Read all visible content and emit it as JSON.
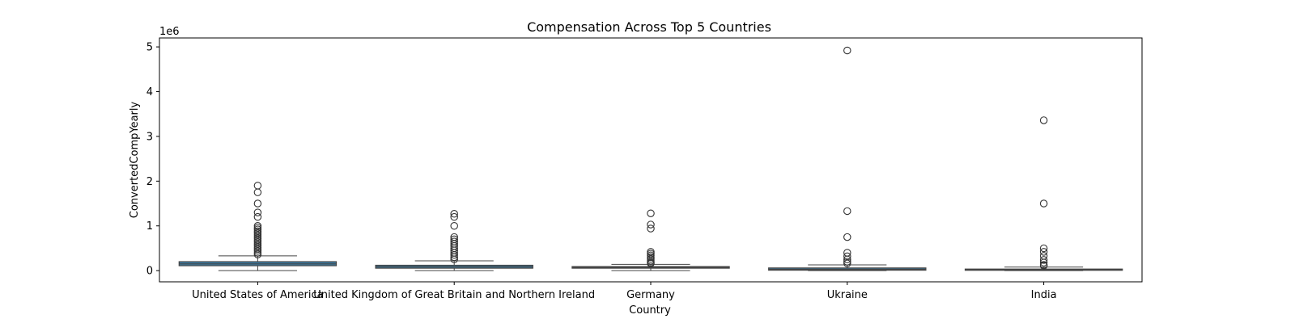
{
  "chart_data": {
    "type": "box",
    "title": "Compensation Across Top 5 Countries",
    "xlabel": "Country",
    "ylabel": "ConvertedCompYearly",
    "y_offset_label": "1e6",
    "y_scale_multiplier": 1000000,
    "ylim": [
      -250000,
      5200000
    ],
    "y_ticks": [
      0,
      1000000,
      2000000,
      3000000,
      4000000,
      5000000
    ],
    "y_tick_labels": [
      "0",
      "1",
      "2",
      "3",
      "4",
      "5"
    ],
    "categories": [
      "United States of America",
      "United Kingdom of Great Britain and Northern Ireland",
      "Germany",
      "Ukraine",
      "India"
    ],
    "box_color": "#3a7ca5",
    "boxes": [
      {
        "whisker_low": 0,
        "q1": 110000,
        "median": 150000,
        "q3": 200000,
        "whisker_high": 330000,
        "outliers": [
          1900000,
          1750000,
          1500000,
          1300000,
          1200000,
          1000000,
          960000,
          920000,
          880000,
          840000,
          800000,
          760000,
          720000,
          680000,
          640000,
          600000,
          560000,
          520000,
          480000,
          440000,
          400000,
          360000
        ]
      },
      {
        "whisker_low": 0,
        "q1": 55000,
        "median": 85000,
        "q3": 120000,
        "whisker_high": 220000,
        "outliers": [
          1270000,
          1200000,
          1000000,
          750000,
          700000,
          650000,
          600000,
          550000,
          500000,
          450000,
          400000,
          350000,
          300000,
          250000
        ]
      },
      {
        "whisker_low": 0,
        "q1": 55000,
        "median": 72000,
        "q3": 90000,
        "whisker_high": 140000,
        "outliers": [
          1280000,
          1030000,
          940000,
          420000,
          380000,
          340000,
          300000,
          260000,
          220000,
          180000,
          160000
        ]
      },
      {
        "whisker_low": 0,
        "q1": 10000,
        "median": 30000,
        "q3": 60000,
        "whisker_high": 130000,
        "outliers": [
          4920000,
          1330000,
          750000,
          400000,
          320000,
          250000,
          200000,
          160000
        ]
      },
      {
        "whisker_low": 0,
        "q1": 8000,
        "median": 18000,
        "q3": 35000,
        "whisker_high": 80000,
        "outliers": [
          3360000,
          1500000,
          500000,
          420000,
          330000,
          240000,
          180000,
          130000,
          110000
        ]
      }
    ]
  }
}
